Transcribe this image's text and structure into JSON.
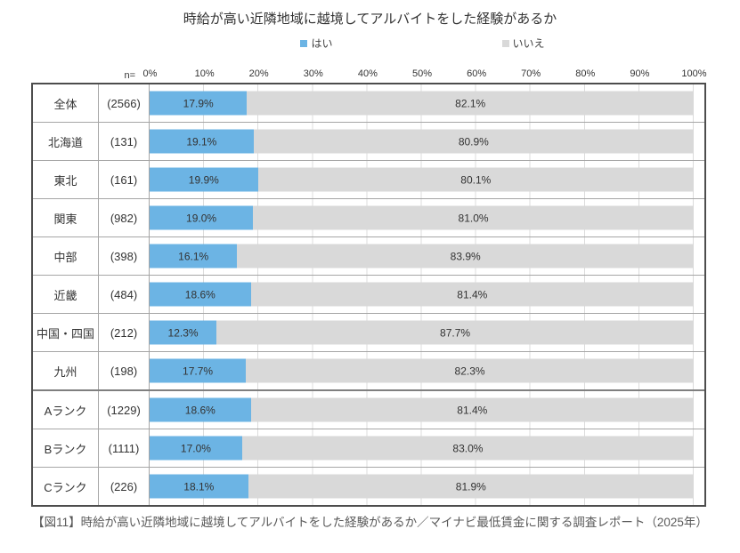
{
  "chart_data": {
    "type": "bar",
    "orientation": "horizontal",
    "stacked": true,
    "title": "時給が高い近隣地域に越境してアルバイトをした経験があるか",
    "categories": [
      "全体",
      "北海道",
      "東北",
      "関東",
      "中部",
      "近畿",
      "中国・四国",
      "九州",
      "Aランク",
      "Bランク",
      "Cランク"
    ],
    "n_values": [
      2566,
      131,
      161,
      982,
      398,
      484,
      212,
      198,
      1229,
      1111,
      226
    ],
    "series": [
      {
        "name": "はい",
        "color": "#6cb4e4",
        "values": [
          17.9,
          19.1,
          19.9,
          19.0,
          16.1,
          18.6,
          12.3,
          17.7,
          18.6,
          17.0,
          18.1
        ]
      },
      {
        "name": "いいえ",
        "color": "#d9d9d9",
        "values": [
          82.1,
          80.9,
          80.1,
          81.0,
          83.9,
          81.4,
          87.7,
          82.3,
          81.4,
          83.0,
          81.9
        ]
      }
    ],
    "xlim": [
      0,
      100
    ],
    "x_ticks": [
      "0%",
      "10%",
      "20%",
      "30%",
      "40%",
      "50%",
      "60%",
      "70%",
      "80%",
      "90%",
      "100%"
    ],
    "legend_position": "top",
    "gridlines": "vertical",
    "group_separator_after_index": 7
  },
  "table": {
    "n_header": "n=",
    "rows": [
      {
        "category": "全体",
        "n": "(2566)",
        "yes": "17.9%",
        "no": "82.1%"
      },
      {
        "category": "北海道",
        "n": "(131)",
        "yes": "19.1%",
        "no": "80.9%"
      },
      {
        "category": "東北",
        "n": "(161)",
        "yes": "19.9%",
        "no": "80.1%"
      },
      {
        "category": "関東",
        "n": "(982)",
        "yes": "19.0%",
        "no": "81.0%"
      },
      {
        "category": "中部",
        "n": "(398)",
        "yes": "16.1%",
        "no": "83.9%"
      },
      {
        "category": "近畿",
        "n": "(484)",
        "yes": "18.6%",
        "no": "81.4%"
      },
      {
        "category": "中国・四国",
        "n": "(212)",
        "yes": "12.3%",
        "no": "87.7%"
      },
      {
        "category": "九州",
        "n": "(198)",
        "yes": "17.7%",
        "no": "82.3%"
      },
      {
        "category": "Aランク",
        "n": "(1229)",
        "yes": "18.6%",
        "no": "81.4%"
      },
      {
        "category": "Bランク",
        "n": "(1111)",
        "yes": "17.0%",
        "no": "83.0%"
      },
      {
        "category": "Cランク",
        "n": "(226)",
        "yes": "18.1%",
        "no": "81.9%"
      }
    ]
  },
  "caption": {
    "text": "【図11】時給が高い近隣地域に越境してアルバイトをした経験があるか／マイナビ最低賃金に関する調査レポート（2025年）"
  },
  "colors": {
    "yes": "#6cb4e4",
    "no": "#d9d9d9",
    "outer_border": "#4d4d4d",
    "inner_border": "#a6a6a6",
    "group_separator": "#7f7f7f",
    "gridline": "#dcdcdc"
  }
}
